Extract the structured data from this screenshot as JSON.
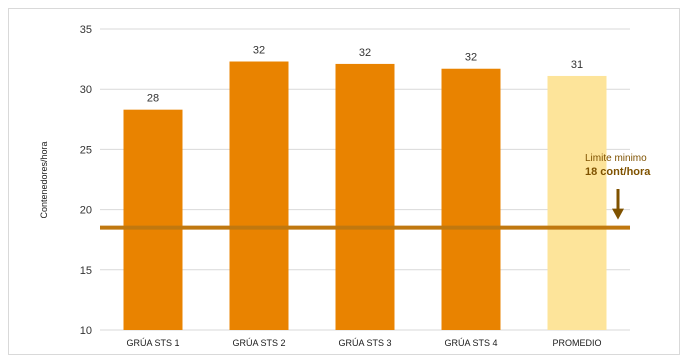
{
  "chart_data": {
    "type": "bar",
    "categories": [
      "GRÚA STS 1",
      "GRÚA STS 2",
      "GRÚA STS 3",
      "GRÚA STS 4",
      "PROMEDIO"
    ],
    "values": [
      28.3,
      32.3,
      32.1,
      31.7,
      31.1
    ],
    "data_labels": [
      "28",
      "32",
      "32",
      "32",
      "31"
    ],
    "xlabel": "",
    "ylabel": "Contenedores/hora",
    "ylim": [
      10,
      35
    ],
    "yticks": [
      10,
      15,
      20,
      25,
      30,
      35
    ],
    "grid": true,
    "colors": {
      "bar": "#e98300",
      "average_bar": "#fde49a",
      "threshold_line": "#c0780f",
      "arrow": "#7f5200",
      "grid": "#d9d9d9"
    },
    "threshold": {
      "value": 18.5,
      "label_line1": "Limite minimo",
      "label_line2": "18 cont/hora"
    }
  }
}
